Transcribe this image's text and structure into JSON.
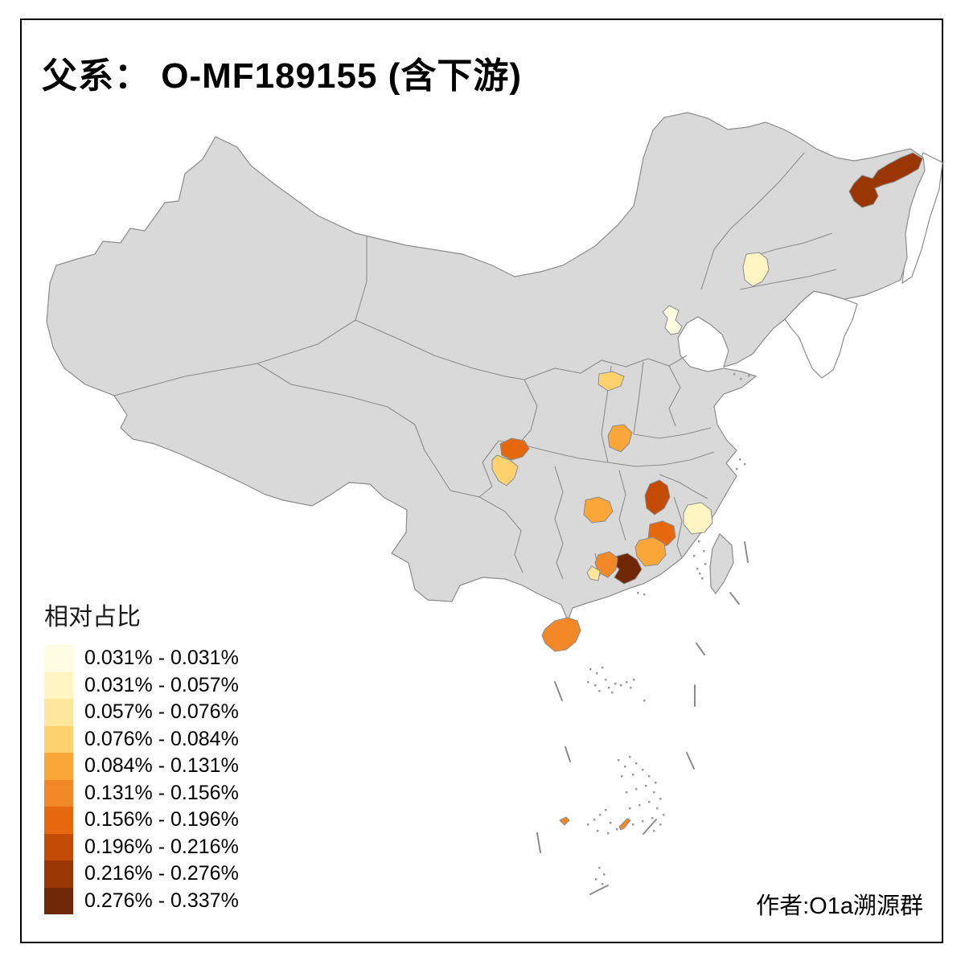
{
  "title": "父系： O-MF189155 (含下游)",
  "attribution": "作者:O1a溯源群",
  "legend": {
    "title": "相对占比",
    "classes": [
      {
        "label": "0.031% - 0.031%",
        "color": "#FEFCE1"
      },
      {
        "label": "0.031% - 0.057%",
        "color": "#FFF5C3"
      },
      {
        "label": "0.057% - 0.076%",
        "color": "#FEE79C"
      },
      {
        "label": "0.076% - 0.084%",
        "color": "#FDD26E"
      },
      {
        "label": "0.084% - 0.131%",
        "color": "#FBA638"
      },
      {
        "label": "0.131% - 0.156%",
        "color": "#F28727"
      },
      {
        "label": "0.156% - 0.196%",
        "color": "#E5680F"
      },
      {
        "label": "0.196% - 0.216%",
        "color": "#C44B04"
      },
      {
        "label": "0.216% - 0.276%",
        "color": "#9A3504"
      },
      {
        "label": "0.276% - 0.337%",
        "color": "#6F2706"
      }
    ]
  },
  "map": {
    "base_fill": "#D9D9D9",
    "border_color": "#8C8C8C",
    "sea_fill": "#FFFFFF",
    "regions": [
      {
        "id": "r1",
        "area": "northeast-far-east",
        "class_index": 9
      },
      {
        "id": "r2",
        "area": "northeast-south",
        "class_index": 2
      },
      {
        "id": "r3",
        "area": "north-coast-tianjin",
        "class_index": 1
      },
      {
        "id": "r4",
        "area": "north-central",
        "class_index": 4
      },
      {
        "id": "r5",
        "area": "central-plain",
        "class_index": 5
      },
      {
        "id": "r6",
        "area": "southwest-basin-north",
        "class_index": 7
      },
      {
        "id": "r7",
        "area": "southwest-basin-south",
        "class_index": 4
      },
      {
        "id": "r8",
        "area": "south-central",
        "class_index": 5
      },
      {
        "id": "r9",
        "area": "southeast-inland-north",
        "class_index": 8
      },
      {
        "id": "r10",
        "area": "southeast-coast",
        "class_index": 2
      },
      {
        "id": "r11",
        "area": "southeast-inland-south",
        "class_index": 7
      },
      {
        "id": "r12",
        "area": "south-northeast",
        "class_index": 5
      },
      {
        "id": "r13",
        "area": "south-coast-dark",
        "class_index": 10
      },
      {
        "id": "r14",
        "area": "south-coast-west",
        "class_index": 6
      },
      {
        "id": "r15",
        "area": "south-coast-small",
        "class_index": 3
      },
      {
        "id": "r16",
        "area": "south-island",
        "class_index": 6
      },
      {
        "id": "r17",
        "area": "south-sea-islet-west",
        "class_index": 6
      },
      {
        "id": "r18",
        "area": "south-sea-islet-east",
        "class_index": 6
      }
    ]
  }
}
